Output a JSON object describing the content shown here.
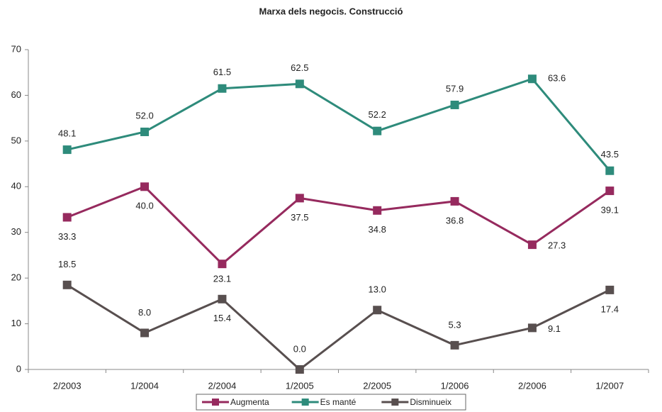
{
  "chart_data": {
    "type": "line",
    "title": "Marxa dels negocis. Construcció",
    "categories": [
      "2/2003",
      "1/2004",
      "2/2004",
      "1/2005",
      "2/2005",
      "1/2006",
      "2/2006",
      "1/2007"
    ],
    "series": [
      {
        "name": "Augmenta",
        "color": "#962a5e",
        "values": [
          33.3,
          40.0,
          23.1,
          37.5,
          34.8,
          36.8,
          27.3,
          39.1
        ],
        "value_labels": [
          "33.3",
          "40.0",
          "23.1",
          "37.5",
          "34.8",
          "36.8",
          "27.3",
          "39.1"
        ]
      },
      {
        "name": "Es manté",
        "color": "#2e8b7b",
        "values": [
          48.1,
          52.0,
          61.5,
          62.5,
          52.2,
          57.9,
          63.6,
          43.5
        ],
        "value_labels": [
          "48.1",
          "52.0",
          "61.5",
          "62.5",
          "52.2",
          "57.9",
          "63.6",
          "43.5"
        ]
      },
      {
        "name": "Disminueix",
        "color": "#584f4f",
        "values": [
          18.5,
          8.0,
          15.4,
          0.0,
          13.0,
          5.3,
          9.1,
          17.4
        ],
        "value_labels": [
          "18.5",
          "8.0",
          "15.4",
          "0.0",
          "13.0",
          "5.3",
          "9.1",
          "17.4"
        ]
      }
    ],
    "ylim": [
      0,
      70
    ],
    "yticks": [
      0,
      10,
      20,
      30,
      40,
      50,
      60,
      70
    ],
    "grid": false,
    "legend": "bottom"
  }
}
